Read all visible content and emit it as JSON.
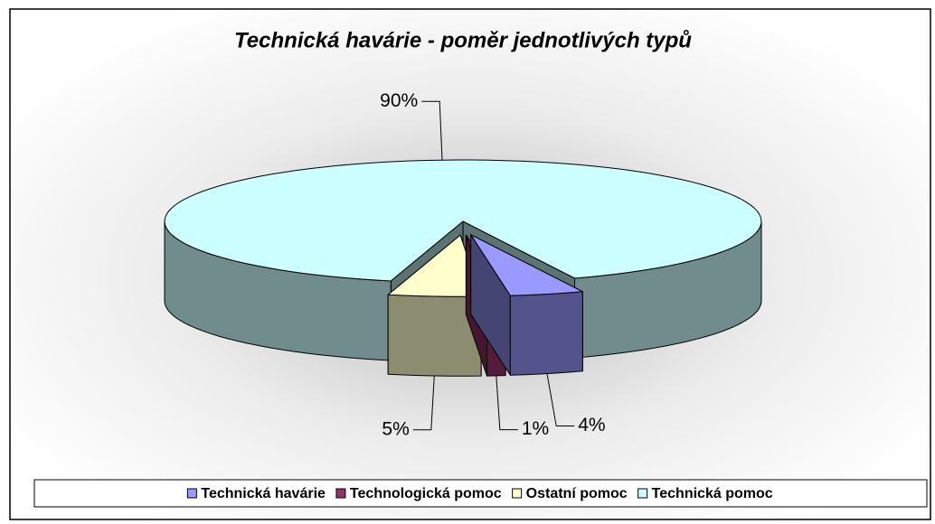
{
  "chart_data": {
    "type": "pie3d",
    "title": "Technická havárie - poměr jednotlivých typů",
    "categories": [
      "Technická havárie",
      "Technologická pomoc",
      "Ostatní pomoc",
      "Technická pomoc"
    ],
    "values": [
      4,
      1,
      5,
      90
    ],
    "value_labels": [
      "4%",
      "1%",
      "5%",
      "90%"
    ],
    "colors": [
      "#9999ff",
      "#993366",
      "#ffffcc",
      "#ccffff"
    ],
    "legend": "bottom"
  }
}
